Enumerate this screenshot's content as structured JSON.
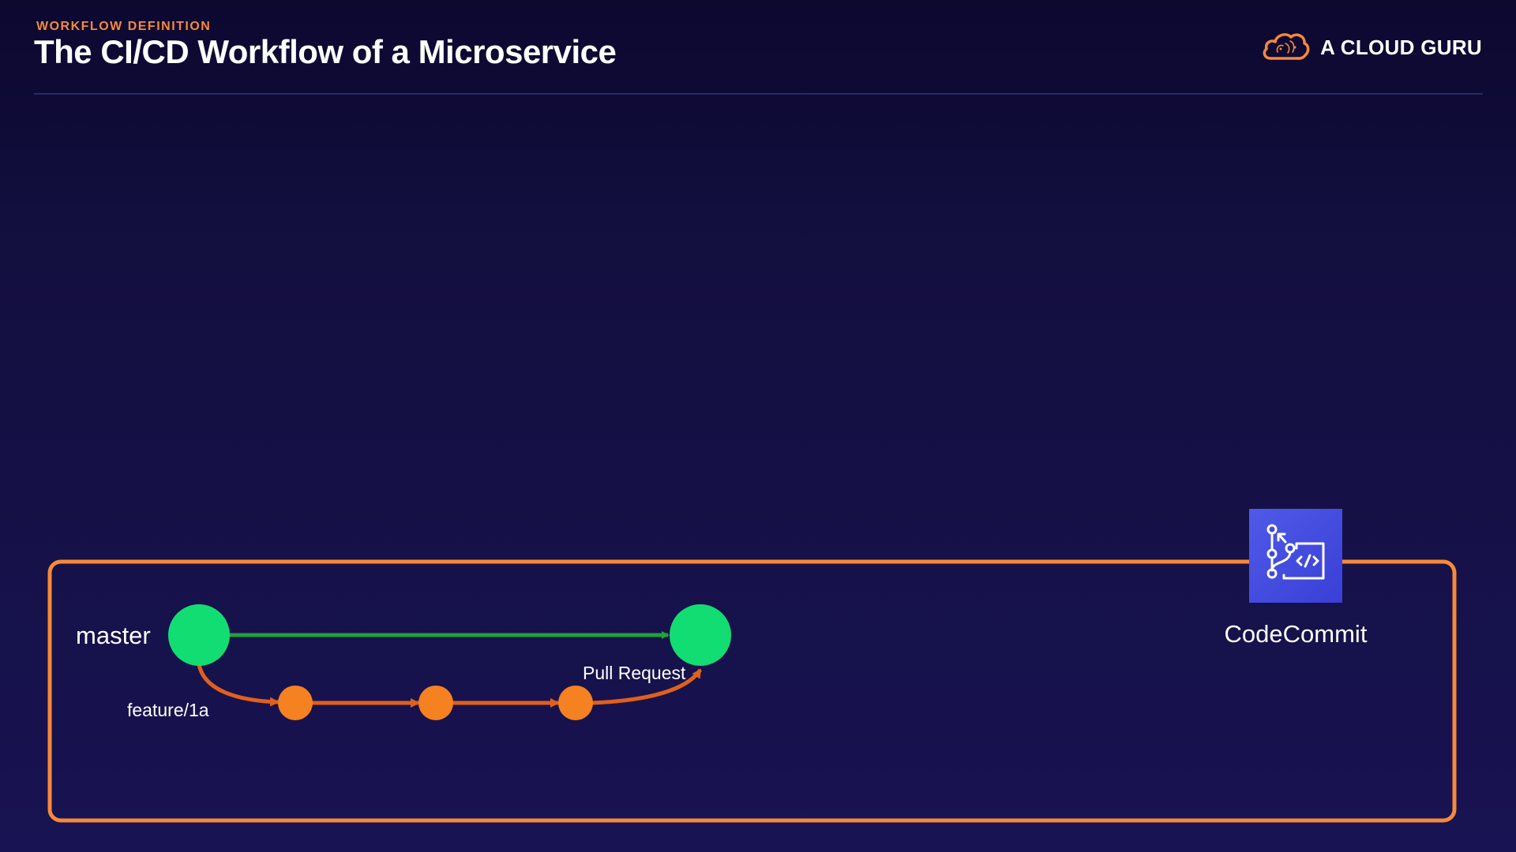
{
  "header": {
    "eyebrow": "WORKFLOW DEFINITION",
    "title": "The CI/CD Workflow of a Microservice"
  },
  "brand": {
    "name": "A CLOUD GURU",
    "icon": "cloud-logo-icon",
    "color": "#f7893b"
  },
  "diagram": {
    "border_color": "#f7893b",
    "master": {
      "label": "master",
      "color": "#12dd72",
      "arrow_color": "#1fa33a"
    },
    "feature": {
      "label": "feature/1a",
      "color": "#f58120",
      "arrow_color": "#e0601d",
      "commit_count": 3
    },
    "merge_label": "Pull Request"
  },
  "service": {
    "label": "CodeCommit",
    "icon": "codecommit-icon",
    "tile_color": "#4450e2"
  }
}
